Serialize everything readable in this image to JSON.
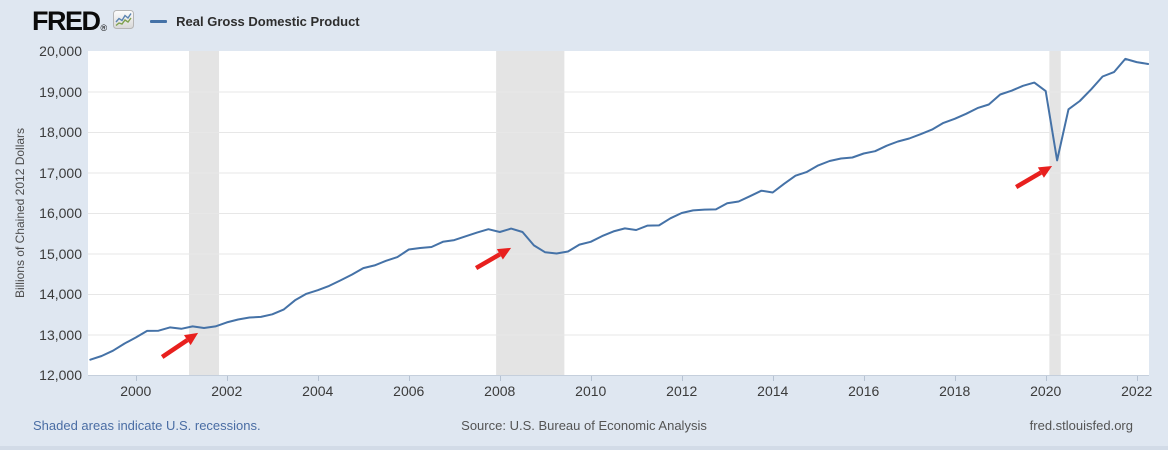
{
  "header": {
    "logo_text": "FRED",
    "registered_mark": "®",
    "logo_icon": "line-chart-icon"
  },
  "footer": {
    "recession_note": "Shaded areas indicate U.S. recessions.",
    "source": "Source: U.S. Bureau of Economic Analysis",
    "site": "fred.stlouisfed.org"
  },
  "chart_data": {
    "type": "line",
    "title": "Real Gross Domestic Product",
    "legend": [
      "Real Gross Domestic Product"
    ],
    "legend_position": "top header, left",
    "ylabel": "Billions of Chained 2012 Dollars",
    "xlabel": "",
    "x_unit": "year (quarterly observations, plotted at quarter start)",
    "x_start": 1999.0,
    "x_step": 0.25,
    "xlim": [
      1998.95,
      2022.27
    ],
    "ylim": [
      12000,
      20000
    ],
    "grid": "horizontal only",
    "x_tick_years": [
      2000,
      2002,
      2004,
      2006,
      2008,
      2010,
      2012,
      2014,
      2016,
      2018,
      2020,
      2022
    ],
    "y_tick_values": [
      12000,
      13000,
      14000,
      15000,
      16000,
      17000,
      18000,
      19000,
      20000
    ],
    "y_tick_labels": [
      "12,000",
      "13,000",
      "14,000",
      "15,000",
      "16,000",
      "17,000",
      "18,000",
      "19,000",
      "20,000"
    ],
    "line_color": "#4572a7",
    "recession_band_color": "#e4e4e4",
    "gridline_color": "#e7e7e7",
    "arrow_color": "#e8201e",
    "recessions": [
      {
        "start": 2001.17,
        "end": 2001.83
      },
      {
        "start": 2007.92,
        "end": 2009.42
      },
      {
        "start": 2020.08,
        "end": 2020.33
      }
    ],
    "arrows": [
      {
        "from": [
          2000.58,
          12445
        ],
        "to": [
          2001.37,
          13040
        ]
      },
      {
        "from": [
          2007.48,
          14640
        ],
        "to": [
          2008.25,
          15140
        ]
      },
      {
        "from": [
          2019.35,
          16640
        ],
        "to": [
          2020.14,
          17160
        ]
      }
    ],
    "values": [
      12377,
      12470,
      12600,
      12775,
      12925,
      13090,
      13095,
      13175,
      13140,
      13200,
      13160,
      13200,
      13300,
      13370,
      13420,
      13435,
      13500,
      13615,
      13845,
      14005,
      14095,
      14200,
      14335,
      14480,
      14640,
      14705,
      14820,
      14910,
      15100,
      15135,
      15160,
      15290,
      15330,
      15425,
      15515,
      15600,
      15530,
      15615,
      15530,
      15200,
      15030,
      15000,
      15050,
      15220,
      15290,
      15430,
      15545,
      15620,
      15580,
      15690,
      15695,
      15870,
      16000,
      16065,
      16085,
      16090,
      16240,
      16285,
      16415,
      16550,
      16505,
      16720,
      16920,
      17015,
      17175,
      17285,
      17345,
      17370,
      17470,
      17525,
      17660,
      17765,
      17840,
      17945,
      18060,
      18225,
      18325,
      18450,
      18590,
      18680,
      18925,
      19020,
      19140,
      19220,
      19010,
      17300,
      18560,
      18765,
      19055,
      19370,
      19480,
      19805,
      19725,
      19680
    ]
  }
}
